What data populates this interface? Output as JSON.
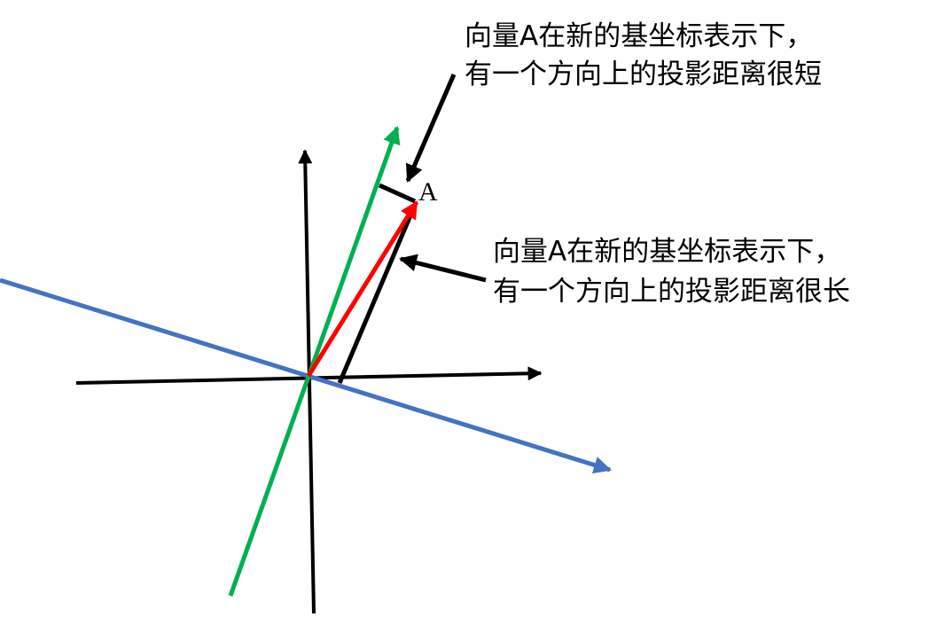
{
  "labels": {
    "point": "A"
  },
  "annotations": [
    {
      "lines": [
        "向量A在新的基坐标表示下，",
        "有一个方向上的投影距离很短"
      ]
    },
    {
      "lines": [
        "向量A在新的基坐标表示下，",
        "有一个方向上的投影距离很长"
      ]
    }
  ]
}
